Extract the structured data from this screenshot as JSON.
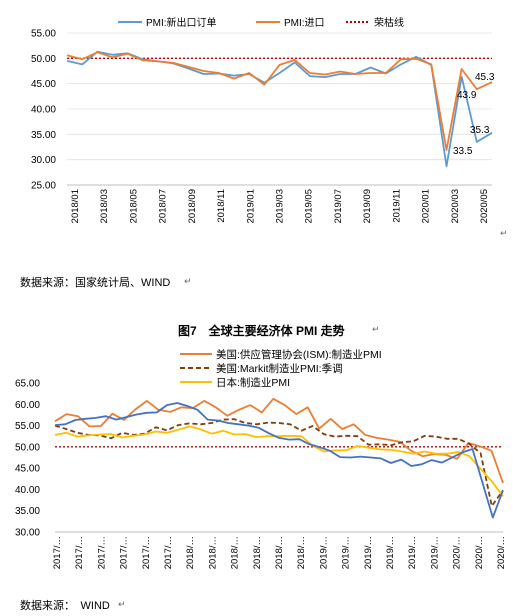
{
  "charts": [
    {
      "type": "line",
      "title": "",
      "legend": {
        "placement": "top",
        "entries": [
          "PMI:新出口订单",
          "PMI:进口",
          "荣枯线"
        ]
      },
      "ylim": [
        25,
        55
      ],
      "yticks": [
        "55.00",
        "50.00",
        "45.00",
        "40.00",
        "35.00",
        "30.00",
        "25.00"
      ],
      "xtick_labels": [
        "2018/01",
        "2018/03",
        "2018/05",
        "2018/07",
        "2018/09",
        "2018/11",
        "2019/01",
        "2019/03",
        "2019/05",
        "2019/07",
        "2019/09",
        "2019/11",
        "2020/01",
        "2020/03",
        "2020/05"
      ],
      "reference_line": {
        "name": "荣枯线",
        "value": 50,
        "color": "#c00000"
      },
      "series": [
        {
          "name": "PMI:新出口订单",
          "color": "#5b9bd5",
          "values": [
            49.5,
            48.8,
            51.3,
            50.7,
            51.0,
            49.8,
            49.4,
            49.0,
            48.0,
            46.9,
            47.0,
            46.6,
            46.9,
            45.2,
            47.1,
            49.2,
            46.5,
            46.3,
            46.9,
            46.9,
            48.2,
            47.0,
            48.8,
            50.3,
            48.7,
            28.7,
            46.4,
            33.5,
            35.3
          ]
        },
        {
          "name": "PMI:进口",
          "color": "#ed7d31",
          "values": [
            50.6,
            49.8,
            51.2,
            50.2,
            50.9,
            49.6,
            49.4,
            49.1,
            48.3,
            47.5,
            47.1,
            46.0,
            47.1,
            44.8,
            48.7,
            49.7,
            47.1,
            46.8,
            47.4,
            46.9,
            47.1,
            47.1,
            49.8,
            49.9,
            48.8,
            31.9,
            47.9,
            43.9,
            45.3
          ]
        }
      ],
      "annotations": [
        "45.3",
        "43.9",
        "35.3",
        "33.5"
      ],
      "source_note": "数据来源：国家统计局、WIND"
    },
    {
      "type": "line",
      "title": "图7　全球主要经济体 PMI 走势",
      "legend": {
        "placement": "top",
        "entries": [
          "美国:供应管理协会(ISM):制造业PMI",
          "美国:Markit制造业PMI:季调",
          "日本:制造业PMI"
        ]
      },
      "ylim": [
        30,
        65
      ],
      "yticks": [
        "65.00",
        "60.00",
        "55.00",
        "50.00",
        "45.00",
        "40.00",
        "35.00",
        "30.00"
      ],
      "xtick_labels": [
        "2017/…",
        "2017/…",
        "2017/…",
        "2017/…",
        "2017/…",
        "2017/…",
        "2018/…",
        "2018/…",
        "2018/…",
        "2018/…",
        "2018/…",
        "2018/…",
        "2019/…",
        "2019/…",
        "2019/…",
        "2019/…",
        "2019/…",
        "2019/…",
        "2020/…",
        "2020/…",
        "2020/…"
      ],
      "reference_line": {
        "value": 50,
        "color": "#c00000"
      },
      "series": [
        {
          "name": "美国:供应管理协会(ISM):制造业PMI",
          "color": "#ed7d31",
          "values": [
            56.0,
            57.7,
            57.2,
            54.8,
            54.9,
            57.8,
            56.3,
            58.8,
            60.8,
            58.7,
            58.2,
            59.3,
            59.1,
            60.8,
            59.3,
            57.3,
            58.7,
            59.8,
            58.1,
            61.3,
            59.8,
            57.7,
            59.3,
            54.3,
            56.6,
            54.2,
            55.3,
            52.8,
            52.1,
            51.7,
            51.2,
            49.1,
            47.8,
            48.3,
            48.1,
            47.2,
            50.9,
            50.1,
            49.1,
            41.5
          ]
        },
        {
          "name": "美国:Markit制造业PMI:季调",
          "color": "#843c0c",
          "values": [
            55.0,
            54.2,
            53.3,
            52.8,
            52.7,
            52.0,
            53.3,
            52.8,
            53.1,
            54.6,
            53.9,
            55.1,
            55.5,
            55.3,
            55.6,
            56.4,
            56.5,
            55.6,
            55.3,
            55.7,
            55.6,
            55.3,
            53.8,
            54.9,
            53.0,
            52.4,
            52.6,
            52.5,
            50.5,
            50.6,
            50.4,
            51.1,
            51.3,
            52.6,
            52.4,
            51.9,
            51.9,
            50.7,
            48.5,
            36.1,
            39.8
          ]
        },
        {
          "name": "日本:制造业PMI",
          "color": "#ffc000",
          "values": [
            52.8,
            53.3,
            52.4,
            52.7,
            52.9,
            53.0,
            52.2,
            52.6,
            52.9,
            53.6,
            53.3,
            54.0,
            54.8,
            54.1,
            53.1,
            53.8,
            52.9,
            53.0,
            52.3,
            52.5,
            52.5,
            52.6,
            52.5,
            50.3,
            48.9,
            49.2,
            49.2,
            50.2,
            49.8,
            49.4,
            49.3,
            48.9,
            48.4,
            48.9,
            48.4,
            48.4,
            48.8,
            47.8,
            44.8,
            41.9,
            38.4
          ]
        },
        {
          "name": "",
          "color": "#4472c4",
          "values": [
            55.1,
            55.3,
            56.3,
            56.6,
            56.8,
            57.2,
            56.4,
            57.0,
            57.6,
            58.0,
            58.1,
            59.8,
            60.3,
            59.6,
            58.7,
            56.4,
            56.2,
            55.6,
            55.3,
            55.0,
            54.5,
            53.2,
            52.1,
            51.7,
            51.8,
            50.6,
            49.9,
            49.1,
            47.6,
            47.5,
            47.7,
            47.5,
            47.3,
            46.2,
            47.0,
            45.5,
            45.9,
            46.9,
            46.3,
            47.5,
            48.7,
            49.5,
            41.5,
            33.4,
            39.8
          ]
        }
      ],
      "source_note": "数据来源：　WIND"
    }
  ]
}
